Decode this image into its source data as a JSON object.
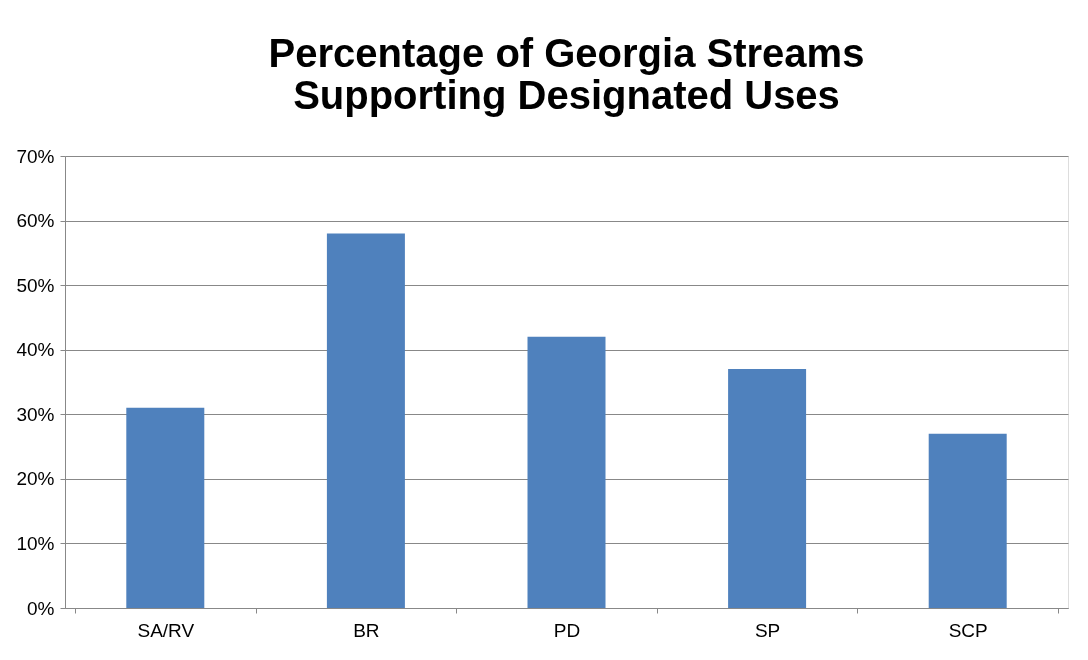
{
  "chart_data": {
    "type": "bar",
    "title": "Percentage of Georgia Streams Supporting Designated Uses",
    "categories": [
      "SA/RV",
      "BR",
      "PD",
      "SP",
      "SCP"
    ],
    "values": [
      31,
      58,
      42,
      37,
      27
    ],
    "color": "#4f81bd",
    "ylim": [
      0,
      70
    ],
    "yticks": [
      {
        "value": 0,
        "label": "0%"
      },
      {
        "value": 10,
        "label": "10%"
      },
      {
        "value": 20,
        "label": "20%"
      },
      {
        "value": 30,
        "label": "30%"
      },
      {
        "value": 40,
        "label": "40%"
      },
      {
        "value": 50,
        "label": "50%"
      },
      {
        "value": 60,
        "label": "60%"
      },
      {
        "value": 70,
        "label": "70%"
      }
    ],
    "grid": "y",
    "legend": false
  }
}
